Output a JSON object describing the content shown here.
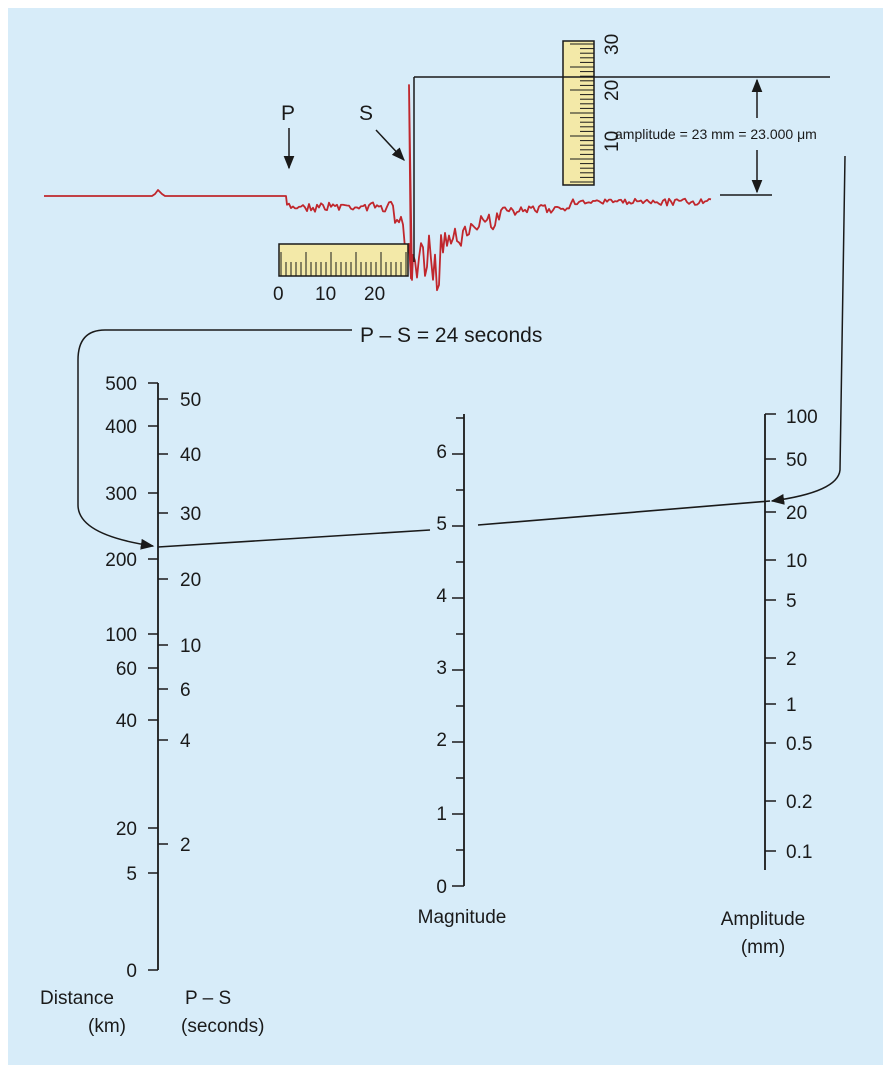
{
  "colors": {
    "background": "#d7ecf9",
    "seismogram": "#c0272d",
    "ink": "#1a1a1a",
    "ruler_fill": "#f3e9a8"
  },
  "seismogram": {
    "p_label": "P",
    "s_label": "S",
    "time_ruler_ticks": [
      "0",
      "10",
      "20"
    ],
    "amplitude_ruler_ticks": [
      "10",
      "20",
      "30"
    ],
    "amplitude_annotation": "amplitude = 23 mm = 23.000 μm",
    "ps_annotation": "P – S = 24 seconds"
  },
  "scales": {
    "distance": {
      "title": "Distance",
      "unit": "(km)",
      "ticks": [
        "500",
        "400",
        "300",
        "200",
        "100",
        "60",
        "40",
        "20",
        "5",
        "0"
      ]
    },
    "ps_time": {
      "title": "P – S",
      "unit": "(seconds)",
      "ticks": [
        "50",
        "40",
        "30",
        "20",
        "10",
        "6",
        "4",
        "2"
      ]
    },
    "magnitude": {
      "title": "Magnitude",
      "ticks": [
        "6",
        "5",
        "4",
        "3",
        "2",
        "1",
        "0"
      ]
    },
    "amplitude": {
      "title": "Amplitude",
      "unit": "(mm)",
      "ticks": [
        "100",
        "50",
        "20",
        "10",
        "5",
        "2",
        "1",
        "0.5",
        "0.2",
        "0.1"
      ]
    }
  }
}
